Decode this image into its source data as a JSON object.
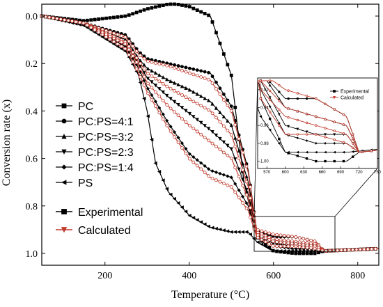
{
  "chart_data": {
    "type": "line",
    "title": "",
    "xlabel": "Temperature (°C)",
    "ylabel": "Conversion rate (x)",
    "xlim": [
      50,
      850
    ],
    "ylim": [
      1.05,
      -0.05
    ],
    "y_inverted": true,
    "x_ticks": [
      200,
      400,
      600,
      800
    ],
    "y_ticks": [
      0.0,
      0.2,
      0.4,
      0.6,
      0.8,
      1.0
    ],
    "y_tick_labels": [
      "0.0",
      "0.2",
      "0.4",
      "0.6",
      "0.8",
      "1.0"
    ],
    "grid": false,
    "legend_placement": "left",
    "legend_series": [
      {
        "name": "PC",
        "marker": "square"
      },
      {
        "name": "PC:PS=4:1",
        "marker": "circle"
      },
      {
        "name": "PC:PS=3:2",
        "marker": "triangle-up"
      },
      {
        "name": "PC:PS=2:3",
        "marker": "triangle-down"
      },
      {
        "name": "PC:PS=1:4",
        "marker": "diamond"
      },
      {
        "name": "PS",
        "marker": "triangle-left"
      }
    ],
    "legend_styles": [
      {
        "name": "Experimental",
        "color": "#000000",
        "marker": "square"
      },
      {
        "name": "Calculated",
        "color": "#c0392b",
        "marker": "triangle-down"
      }
    ],
    "series": [
      {
        "name": "PC",
        "kind": "Experimental",
        "color": "#000000",
        "x": [
          50,
          150,
          250,
          300,
          350,
          370,
          400,
          450,
          500,
          530,
          560,
          600,
          650,
          700,
          720,
          850
        ],
        "y": [
          0.0,
          0.02,
          0.0,
          -0.03,
          -0.05,
          -0.05,
          -0.04,
          0.0,
          0.25,
          0.7,
          0.93,
          0.99,
          1.0,
          1.0,
          0.99,
          0.98
        ]
      },
      {
        "name": "PC:PS=4:1",
        "kind": "Experimental",
        "color": "#000000",
        "x": [
          50,
          150,
          250,
          280,
          300,
          350,
          400,
          450,
          500,
          540,
          560,
          600,
          650,
          700,
          720,
          850
        ],
        "y": [
          0.0,
          0.03,
          0.08,
          0.15,
          0.18,
          0.2,
          0.22,
          0.24,
          0.38,
          0.65,
          0.9,
          0.93,
          0.93,
          0.95,
          0.99,
          0.98
        ]
      },
      {
        "name": "PC:PS=3:2",
        "kind": "Experimental",
        "color": "#000000",
        "x": [
          50,
          150,
          250,
          280,
          300,
          350,
          400,
          450,
          500,
          540,
          560,
          600,
          650,
          700,
          720,
          850
        ],
        "y": [
          0.0,
          0.03,
          0.1,
          0.18,
          0.22,
          0.27,
          0.31,
          0.36,
          0.46,
          0.7,
          0.9,
          0.94,
          0.95,
          0.96,
          0.99,
          0.98
        ]
      },
      {
        "name": "PC:PS=2:3",
        "kind": "Experimental",
        "color": "#000000",
        "x": [
          50,
          150,
          250,
          280,
          300,
          350,
          400,
          450,
          500,
          540,
          560,
          600,
          650,
          700,
          720,
          850
        ],
        "y": [
          0.0,
          0.03,
          0.12,
          0.2,
          0.26,
          0.34,
          0.41,
          0.48,
          0.56,
          0.75,
          0.91,
          0.96,
          0.97,
          0.97,
          0.99,
          0.98
        ]
      },
      {
        "name": "PC:PS=1:4",
        "kind": "Experimental",
        "color": "#000000",
        "x": [
          50,
          150,
          250,
          280,
          300,
          350,
          400,
          450,
          500,
          540,
          560,
          600,
          650,
          700,
          720,
          850
        ],
        "y": [
          0.0,
          0.03,
          0.13,
          0.22,
          0.3,
          0.45,
          0.58,
          0.65,
          0.68,
          0.8,
          0.92,
          0.97,
          0.98,
          0.98,
          0.99,
          0.98
        ]
      },
      {
        "name": "PS",
        "kind": "Experimental",
        "color": "#000000",
        "x": [
          50,
          150,
          250,
          280,
          300,
          320,
          350,
          400,
          450,
          500,
          540,
          560,
          600,
          650,
          700,
          850
        ],
        "y": [
          0.0,
          0.04,
          0.15,
          0.25,
          0.4,
          0.62,
          0.74,
          0.84,
          0.89,
          0.91,
          0.91,
          0.95,
          0.99,
          0.99,
          0.99,
          0.98
        ]
      },
      {
        "name": "PC:PS=4:1",
        "kind": "Calculated",
        "color": "#c0392b",
        "x": [
          50,
          150,
          250,
          280,
          300,
          350,
          400,
          450,
          500,
          540,
          560,
          600,
          650,
          700,
          720,
          850
        ],
        "y": [
          0.0,
          0.03,
          0.09,
          0.16,
          0.19,
          0.21,
          0.24,
          0.27,
          0.4,
          0.66,
          0.9,
          0.92,
          0.93,
          0.95,
          0.99,
          0.98
        ]
      },
      {
        "name": "PC:PS=3:2",
        "kind": "Calculated",
        "color": "#c0392b",
        "x": [
          50,
          150,
          250,
          280,
          300,
          350,
          400,
          450,
          500,
          540,
          560,
          600,
          650,
          700,
          720,
          850
        ],
        "y": [
          0.0,
          0.03,
          0.11,
          0.19,
          0.24,
          0.3,
          0.35,
          0.4,
          0.5,
          0.72,
          0.91,
          0.94,
          0.95,
          0.96,
          0.99,
          0.98
        ]
      },
      {
        "name": "PC:PS=2:3",
        "kind": "Calculated",
        "color": "#c0392b",
        "x": [
          50,
          150,
          250,
          280,
          300,
          350,
          400,
          450,
          500,
          540,
          560,
          600,
          650,
          700,
          720,
          850
        ],
        "y": [
          0.0,
          0.03,
          0.12,
          0.21,
          0.28,
          0.38,
          0.46,
          0.53,
          0.6,
          0.77,
          0.92,
          0.95,
          0.96,
          0.97,
          0.99,
          0.98
        ]
      },
      {
        "name": "PC:PS=1:4",
        "kind": "Calculated",
        "color": "#c0392b",
        "x": [
          50,
          150,
          250,
          280,
          300,
          350,
          400,
          450,
          500,
          540,
          560,
          600,
          650,
          700,
          720,
          850
        ],
        "y": [
          0.0,
          0.03,
          0.14,
          0.24,
          0.32,
          0.47,
          0.6,
          0.68,
          0.72,
          0.82,
          0.93,
          0.97,
          0.97,
          0.98,
          0.99,
          0.98
        ]
      }
    ],
    "inset": {
      "x_ticks": [
        570,
        600,
        630,
        660,
        690,
        720,
        750
      ],
      "x_tick_labels": [
        "570",
        "600",
        "630",
        "660",
        "690",
        "720",
        "750"
      ],
      "y_ticks": [
        0.92,
        0.94,
        0.96,
        0.98,
        1.0
      ],
      "y_tick_labels": [
        "0.92",
        "0.94",
        "0.96",
        "0.98",
        "1.00"
      ],
      "xlim": [
        555,
        750
      ],
      "ylim": [
        0.91,
        1.005
      ],
      "legend": [
        "Experimental",
        "Calculated"
      ]
    }
  }
}
